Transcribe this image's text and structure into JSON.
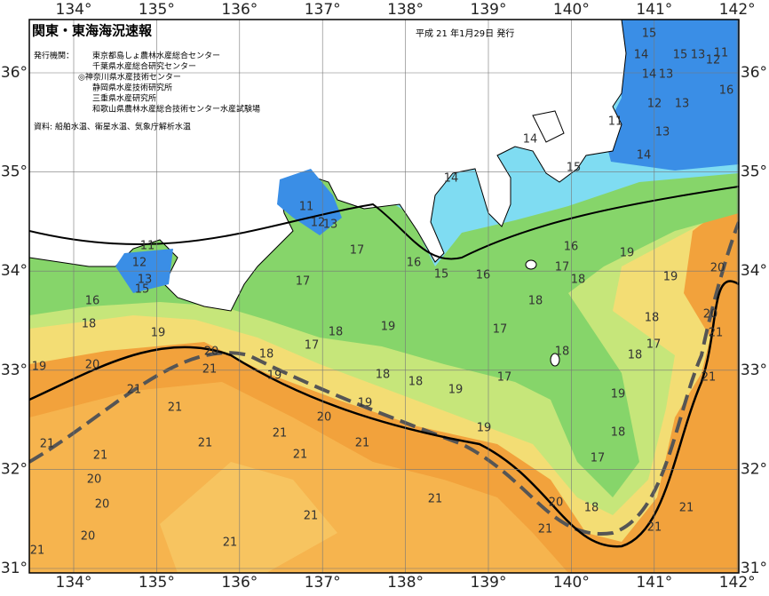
{
  "header": {
    "title": "関東・東海海況速報",
    "issued": "平成 21 年1月29日 発行"
  },
  "publishers": {
    "label": "発行機関：",
    "items": [
      "東京都島しょ農林水産総合センター",
      "千葉県水産総合研究センター",
      "◎神奈川県水産技術センター",
      "静岡県水産技術研究所",
      "三重県水産研究所",
      "和歌山県農林水産総合技術センター水産試験場"
    ]
  },
  "source": "資料: 船舶水温、衛星水温、気象庁解析水温",
  "map": {
    "lon_ticks": [
      {
        "value": 134,
        "label": "134°"
      },
      {
        "value": 135,
        "label": "135°"
      },
      {
        "value": 136,
        "label": "136°"
      },
      {
        "value": 137,
        "label": "137°"
      },
      {
        "value": 138,
        "label": "138°"
      },
      {
        "value": 139,
        "label": "139°"
      },
      {
        "value": 140,
        "label": "140°"
      },
      {
        "value": 141,
        "label": "141°"
      },
      {
        "value": 142,
        "label": "142°"
      }
    ],
    "lat_ticks": [
      {
        "value": 31,
        "label": "31°"
      },
      {
        "value": 32,
        "label": "32°"
      },
      {
        "value": 33,
        "label": "33°"
      },
      {
        "value": 34,
        "label": "34°"
      },
      {
        "value": 35,
        "label": "35°"
      },
      {
        "value": 36,
        "label": "36°"
      }
    ],
    "isotherm_labels": [
      15,
      14,
      15,
      13,
      12,
      11,
      14,
      13,
      16,
      12,
      13,
      11,
      13,
      14,
      14,
      15,
      14,
      11,
      12,
      13,
      11,
      12,
      13,
      15,
      17,
      16,
      15,
      16,
      16,
      19,
      20,
      17,
      18,
      19,
      17,
      16,
      18,
      20,
      18,
      19,
      18,
      19,
      17,
      18,
      21,
      17,
      17,
      18,
      20,
      18,
      18,
      19,
      20,
      21,
      19,
      18,
      18,
      19,
      17,
      21,
      21,
      19,
      19,
      21,
      20,
      19,
      18,
      21,
      21,
      21,
      21,
      21,
      21,
      17,
      20,
      20,
      21,
      20,
      18,
      21,
      21,
      20,
      21,
      21,
      21,
      21
    ]
  }
}
